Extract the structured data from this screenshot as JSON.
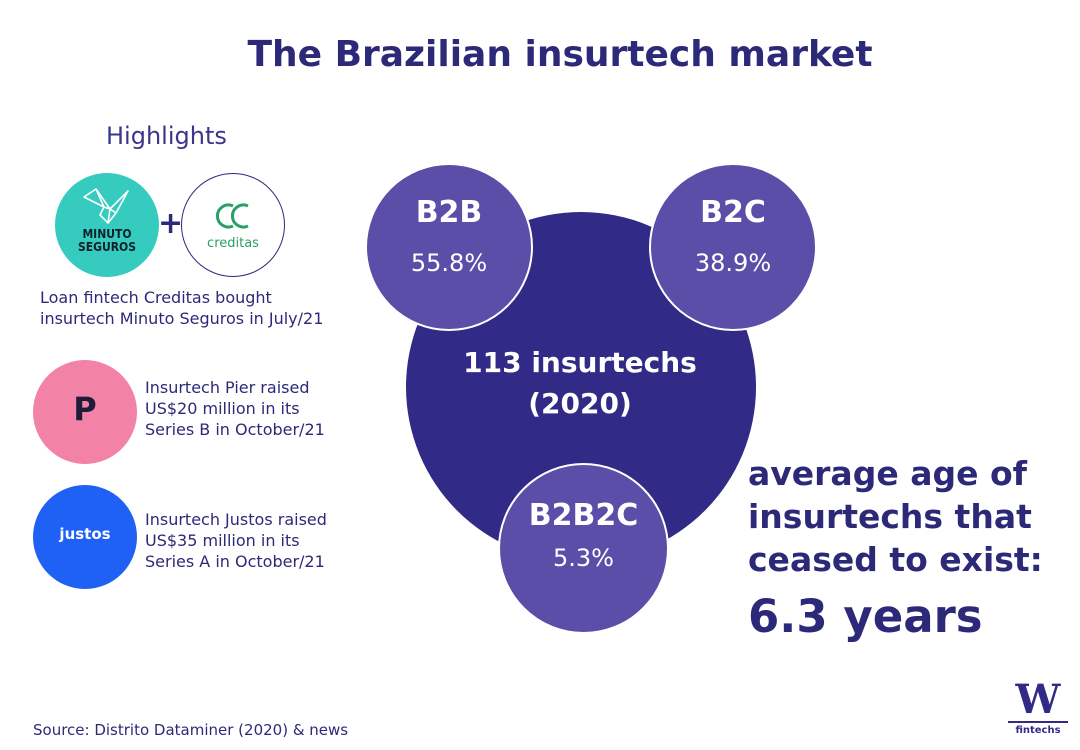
{
  "title": "The Brazilian insurtech market",
  "highlights": {
    "heading": "Highlights",
    "minuto_logo": {
      "line1": "MINUTO",
      "line2": "SEGUROS"
    },
    "plus": "+",
    "creditas_logo": "creditas",
    "deal_note": [
      "Loan fintech Creditas bought",
      "insurtech Minuto Seguros in July/21"
    ],
    "pier_logo": "P",
    "pier_note": [
      "Insurtech Pier raised",
      "US$20 million in its",
      "Series B in October/21"
    ],
    "justos_logo": "justos",
    "justos_note": [
      "Insurtech Justos raised",
      "US$35 million in its",
      "Series A in October/21"
    ]
  },
  "center": {
    "line1": "113 insurtechs",
    "line2": "(2020)"
  },
  "segments": [
    {
      "label": "B2B",
      "value": "55.8%"
    },
    {
      "label": "B2C",
      "value": "38.9%"
    },
    {
      "label": "B2B2C",
      "value": "5.3%"
    }
  ],
  "average_age": {
    "lines": [
      "average age of",
      "insurtechs that",
      "ceased to exist:"
    ],
    "value": "6.3 years"
  },
  "source": "Source: Distrito Dataminer (2020) & news",
  "brand": {
    "letter": "W",
    "sub": "fintechs"
  },
  "colors": {
    "title": "#2c2a78",
    "big_circle": "#312a86",
    "small_circle": "#5a4ea8",
    "minuto": "#35cbbf",
    "creditas": "#2a9f68",
    "pier": "#f283a6",
    "justos": "#1f61f5"
  }
}
